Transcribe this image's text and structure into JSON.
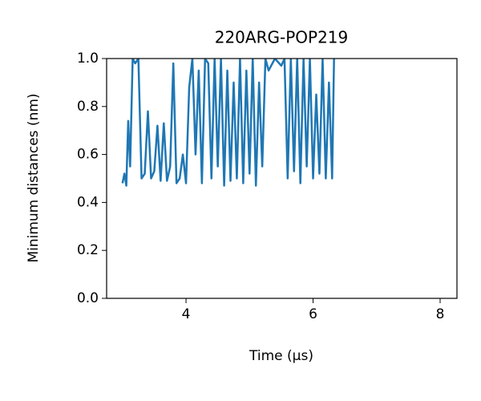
{
  "chart_data": {
    "type": "line",
    "title": "220ARG-POP219",
    "xlabel": "Time (μs)",
    "ylabel": "Minimum distances (nm)",
    "xlim": [
      2.75,
      8.265
    ],
    "ylim": [
      0,
      1.0
    ],
    "xticks": [
      4,
      6,
      8
    ],
    "yticks": [
      {
        "value": 0,
        "label": "0.0"
      },
      0.2,
      0.4,
      0.6,
      0.8,
      {
        "value": 1,
        "label": "1.0"
      }
    ],
    "x": [
      3.0,
      3.03,
      3.06,
      3.09,
      3.12,
      3.16,
      3.2,
      3.25,
      3.3,
      3.35,
      3.4,
      3.45,
      3.5,
      3.55,
      3.6,
      3.65,
      3.7,
      3.75,
      3.8,
      3.85,
      3.9,
      3.95,
      4.0,
      4.05,
      4.1,
      4.15,
      4.2,
      4.25,
      4.3,
      4.35,
      4.4,
      4.45,
      4.5,
      4.55,
      4.6,
      4.65,
      4.7,
      4.75,
      4.8,
      4.85,
      4.9,
      4.95,
      5.0,
      5.05,
      5.1,
      5.15,
      5.2,
      5.25,
      5.3,
      5.4,
      5.5,
      5.55,
      5.6,
      5.65,
      5.7,
      5.75,
      5.8,
      5.85,
      5.9,
      5.95,
      6.0,
      6.05,
      6.1,
      6.15,
      6.2,
      6.25,
      6.3,
      6.33
    ],
    "series": [
      {
        "name": "220ARG-POP219",
        "color": "#1f77b4",
        "values": [
          0.48,
          0.52,
          0.47,
          0.74,
          0.55,
          1.0,
          0.98,
          1.0,
          0.5,
          0.52,
          0.78,
          0.5,
          0.53,
          0.72,
          0.49,
          0.73,
          0.49,
          0.55,
          0.98,
          0.48,
          0.5,
          0.6,
          0.48,
          0.88,
          1.0,
          0.6,
          0.95,
          0.48,
          1.0,
          0.98,
          0.5,
          1.0,
          0.55,
          1.0,
          0.47,
          0.95,
          0.49,
          0.9,
          0.5,
          1.0,
          0.48,
          0.95,
          0.52,
          1.0,
          0.47,
          0.9,
          0.55,
          1.0,
          0.95,
          1.0,
          0.97,
          1.0,
          0.5,
          1.0,
          0.53,
          1.0,
          0.48,
          1.0,
          0.55,
          1.0,
          0.5,
          0.85,
          0.52,
          1.0,
          0.5,
          0.9,
          0.5,
          1.0
        ]
      }
    ]
  }
}
